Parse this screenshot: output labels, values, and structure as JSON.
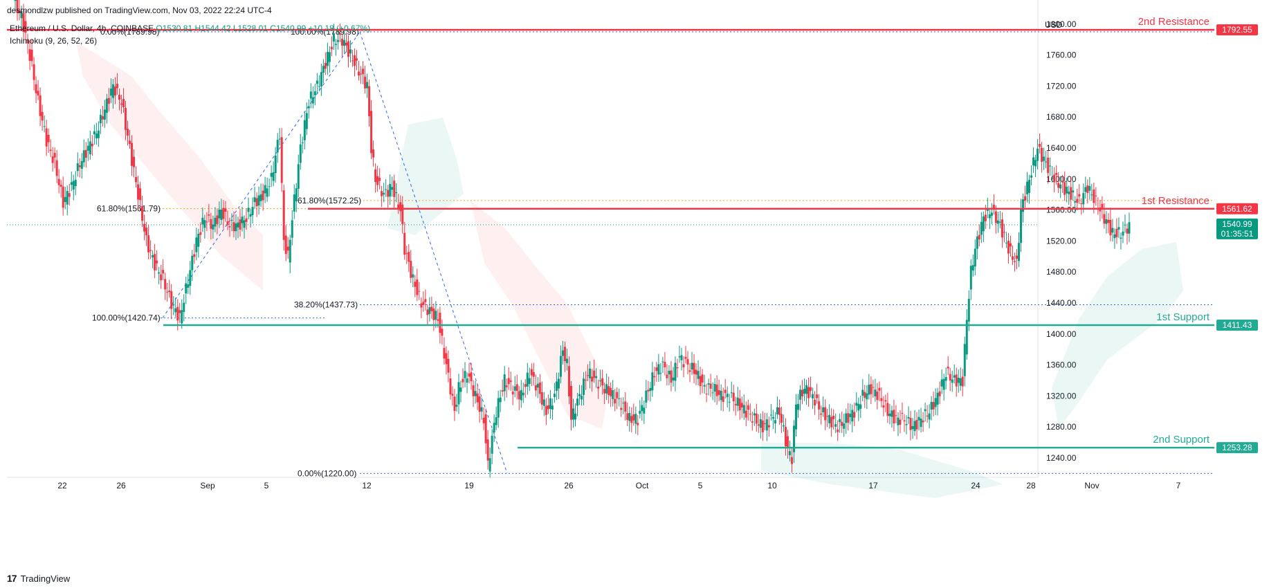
{
  "header": {
    "publisher_line": "desmondlzw published on TradingView.com, Nov 03, 2022 22:24 UTC-4"
  },
  "legend": {
    "symbol": "Ethereum / U.S. Dollar, 4h, COINBASE",
    "open": "O1530.81",
    "high": "H1544.42",
    "low": "L1528.01",
    "close": "C1540.99",
    "change": "+10.18 (+0.67%)",
    "indicator": "Ichimoku (9, 26, 52, 26)"
  },
  "footer": {
    "brand": "TradingView"
  },
  "chart_data": {
    "type": "candlestick",
    "currency_label": "USD",
    "ylim": [
      1215,
      1815
    ],
    "y_ticks": [
      1240,
      1280,
      1320,
      1360,
      1400,
      1440,
      1480,
      1520,
      1560,
      1600,
      1640,
      1680,
      1720,
      1760,
      1800
    ],
    "x_ticks": [
      "22",
      "26",
      "Sep",
      "5",
      "12",
      "19",
      "26",
      "Oct",
      "5",
      "10",
      "17",
      "24",
      "28",
      "Nov",
      "7"
    ],
    "levels": [
      {
        "name": "2nd Resistance",
        "value": 1792.55,
        "label": "1792.55",
        "color": "#f23645"
      },
      {
        "name": "1st Resistance",
        "value": 1561.62,
        "label": "1561.62",
        "color": "#f23645"
      },
      {
        "name": "1st Support",
        "value": 1411.43,
        "label": "1411.43",
        "color": "#22ab94"
      },
      {
        "name": "2nd Support",
        "value": 1253.28,
        "label": "1253.28",
        "color": "#22ab94"
      }
    ],
    "current_price": {
      "value": 1540.99,
      "label": "1540.99",
      "countdown": "01:35:51",
      "color": "#089981"
    },
    "fib_left": [
      {
        "label": "0.00%(1789.98)",
        "value": 1789.98
      },
      {
        "label": "61.80%(1561.79)",
        "value": 1561.79
      },
      {
        "label": "100.00%(1420.74)",
        "value": 1420.74
      }
    ],
    "fib_right": [
      {
        "label": "100.00%(1789.98)",
        "value": 1789.98
      },
      {
        "label": "61.80%(1572.25)",
        "value": 1572.25
      },
      {
        "label": "38.20%(1437.73)",
        "value": 1437.73
      },
      {
        "label": "0.00%(1220.00)",
        "value": 1220.0
      }
    ],
    "price_path": [
      [
        0,
        1830
      ],
      [
        4,
        1810
      ],
      [
        8,
        1760
      ],
      [
        12,
        1700
      ],
      [
        16,
        1650
      ],
      [
        20,
        1620
      ],
      [
        24,
        1570
      ],
      [
        28,
        1590
      ],
      [
        32,
        1620
      ],
      [
        36,
        1640
      ],
      [
        40,
        1660
      ],
      [
        44,
        1690
      ],
      [
        48,
        1720
      ],
      [
        52,
        1700
      ],
      [
        56,
        1640
      ],
      [
        60,
        1580
      ],
      [
        64,
        1520
      ],
      [
        68,
        1490
      ],
      [
        72,
        1470
      ],
      [
        76,
        1440
      ],
      [
        80,
        1420
      ],
      [
        84,
        1470
      ],
      [
        88,
        1520
      ],
      [
        92,
        1550
      ],
      [
        96,
        1540
      ],
      [
        100,
        1560
      ],
      [
        104,
        1540
      ],
      [
        108,
        1540
      ],
      [
        112,
        1550
      ],
      [
        116,
        1570
      ],
      [
        120,
        1580
      ],
      [
        124,
        1600
      ],
      [
        128,
        1660
      ],
      [
        130,
        1520
      ],
      [
        132,
        1500
      ],
      [
        134,
        1550
      ],
      [
        138,
        1640
      ],
      [
        142,
        1700
      ],
      [
        146,
        1720
      ],
      [
        150,
        1750
      ],
      [
        154,
        1780
      ],
      [
        158,
        1780
      ],
      [
        162,
        1760
      ],
      [
        166,
        1740
      ],
      [
        170,
        1720
      ],
      [
        172,
        1640
      ],
      [
        174,
        1600
      ],
      [
        178,
        1580
      ],
      [
        182,
        1590
      ],
      [
        186,
        1560
      ],
      [
        188,
        1510
      ],
      [
        192,
        1470
      ],
      [
        196,
        1440
      ],
      [
        200,
        1430
      ],
      [
        204,
        1420
      ],
      [
        208,
        1360
      ],
      [
        212,
        1300
      ],
      [
        214,
        1330
      ],
      [
        218,
        1350
      ],
      [
        222,
        1320
      ],
      [
        226,
        1290
      ],
      [
        228,
        1230
      ],
      [
        232,
        1300
      ],
      [
        236,
        1340
      ],
      [
        240,
        1330
      ],
      [
        244,
        1320
      ],
      [
        248,
        1350
      ],
      [
        252,
        1330
      ],
      [
        256,
        1300
      ],
      [
        260,
        1320
      ],
      [
        264,
        1380
      ],
      [
        266,
        1360
      ],
      [
        268,
        1290
      ],
      [
        272,
        1320
      ],
      [
        276,
        1350
      ],
      [
        280,
        1340
      ],
      [
        284,
        1330
      ],
      [
        288,
        1320
      ],
      [
        292,
        1310
      ],
      [
        296,
        1290
      ],
      [
        300,
        1290
      ],
      [
        304,
        1320
      ],
      [
        308,
        1350
      ],
      [
        312,
        1360
      ],
      [
        316,
        1340
      ],
      [
        320,
        1370
      ],
      [
        324,
        1360
      ],
      [
        328,
        1350
      ],
      [
        332,
        1330
      ],
      [
        336,
        1330
      ],
      [
        340,
        1320
      ],
      [
        344,
        1320
      ],
      [
        348,
        1310
      ],
      [
        352,
        1300
      ],
      [
        356,
        1290
      ],
      [
        360,
        1280
      ],
      [
        364,
        1290
      ],
      [
        368,
        1300
      ],
      [
        372,
        1250
      ],
      [
        374,
        1240
      ],
      [
        376,
        1310
      ],
      [
        380,
        1330
      ],
      [
        384,
        1320
      ],
      [
        388,
        1300
      ],
      [
        392,
        1290
      ],
      [
        396,
        1280
      ],
      [
        400,
        1290
      ],
      [
        404,
        1300
      ],
      [
        408,
        1320
      ],
      [
        412,
        1330
      ],
      [
        416,
        1320
      ],
      [
        420,
        1300
      ],
      [
        424,
        1290
      ],
      [
        428,
        1290
      ],
      [
        432,
        1280
      ],
      [
        436,
        1290
      ],
      [
        440,
        1300
      ],
      [
        444,
        1320
      ],
      [
        448,
        1350
      ],
      [
        452,
        1340
      ],
      [
        456,
        1340
      ],
      [
        458,
        1420
      ],
      [
        460,
        1480
      ],
      [
        462,
        1510
      ],
      [
        466,
        1550
      ],
      [
        470,
        1560
      ],
      [
        474,
        1540
      ],
      [
        478,
        1510
      ],
      [
        482,
        1490
      ],
      [
        484,
        1560
      ],
      [
        488,
        1600
      ],
      [
        492,
        1640
      ],
      [
        496,
        1620
      ],
      [
        500,
        1600
      ],
      [
        504,
        1590
      ],
      [
        508,
        1580
      ],
      [
        512,
        1570
      ],
      [
        516,
        1590
      ],
      [
        520,
        1570
      ],
      [
        524,
        1550
      ],
      [
        528,
        1530
      ],
      [
        532,
        1530
      ],
      [
        536,
        1540
      ]
    ]
  }
}
